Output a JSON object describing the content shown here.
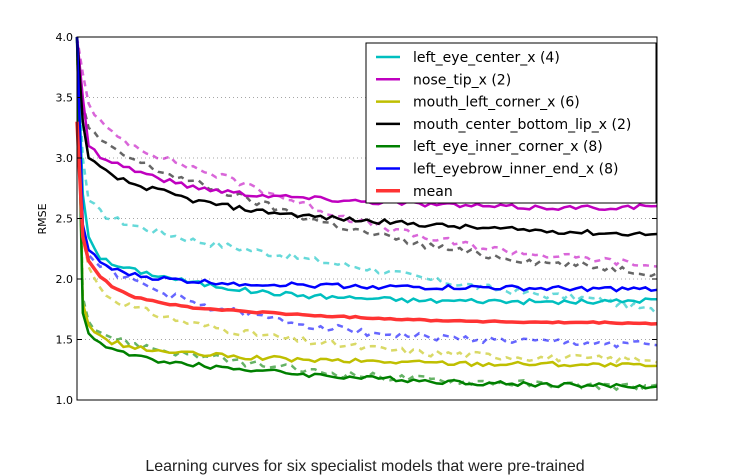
{
  "chart_data": {
    "type": "line",
    "title": "",
    "xlabel": "",
    "ylabel": "RMSE",
    "xlim": [
      0,
      100
    ],
    "ylim": [
      1.0,
      4.0
    ],
    "yticks": [
      "1.0",
      "1.5",
      "2.0",
      "2.5",
      "3.0",
      "3.5",
      "4.0"
    ],
    "ytick_values": [
      1.0,
      1.5,
      2.0,
      2.5,
      3.0,
      3.5,
      4.0
    ],
    "grid": "horizontal dotted",
    "legend_position": "top-right",
    "line_styles": {
      "solid": "train",
      "dashed": "validation"
    },
    "series": [
      {
        "name": "left_eye_center_x (4)",
        "color": "#00bfbf",
        "x": [
          0,
          1,
          2,
          4,
          6,
          10,
          15,
          20,
          30,
          40,
          50,
          60,
          70,
          80,
          90,
          100
        ],
        "solid": [
          4.0,
          2.7,
          2.35,
          2.18,
          2.12,
          2.07,
          2.02,
          1.97,
          1.9,
          1.86,
          1.84,
          1.82,
          1.82,
          1.81,
          1.81,
          1.83
        ],
        "dashed": [
          4.0,
          3.0,
          2.65,
          2.55,
          2.5,
          2.44,
          2.38,
          2.32,
          2.24,
          2.16,
          2.09,
          2.0,
          1.93,
          1.87,
          1.83,
          1.73
        ]
      },
      {
        "name": "nose_tip_x (2)",
        "color": "#bf00bf",
        "x": [
          0,
          1,
          2,
          4,
          6,
          10,
          15,
          20,
          30,
          40,
          50,
          60,
          70,
          80,
          90,
          100
        ],
        "solid": [
          4.0,
          3.5,
          3.1,
          3.02,
          2.97,
          2.9,
          2.82,
          2.76,
          2.7,
          2.67,
          2.64,
          2.62,
          2.6,
          2.59,
          2.59,
          2.6
        ],
        "dashed": [
          4.0,
          3.7,
          3.45,
          3.3,
          3.2,
          3.1,
          3.0,
          2.92,
          2.77,
          2.6,
          2.46,
          2.34,
          2.26,
          2.2,
          2.16,
          2.1
        ]
      },
      {
        "name": "mouth_left_corner_x (6)",
        "color": "#bfbf00",
        "x": [
          0,
          1,
          2,
          4,
          6,
          10,
          15,
          20,
          30,
          40,
          50,
          60,
          70,
          80,
          90,
          100
        ],
        "solid": [
          4.0,
          1.8,
          1.62,
          1.52,
          1.48,
          1.43,
          1.4,
          1.38,
          1.35,
          1.33,
          1.32,
          1.31,
          1.3,
          1.3,
          1.29,
          1.28
        ],
        "dashed": [
          4.0,
          2.35,
          2.1,
          1.92,
          1.84,
          1.76,
          1.69,
          1.63,
          1.55,
          1.48,
          1.43,
          1.39,
          1.37,
          1.35,
          1.34,
          1.34
        ]
      },
      {
        "name": "mouth_center_bottom_lip_x (2)",
        "color": "#000000",
        "x": [
          0,
          1,
          2,
          4,
          6,
          10,
          15,
          20,
          30,
          40,
          50,
          60,
          70,
          80,
          90,
          100
        ],
        "solid": [
          4.0,
          3.3,
          3.0,
          2.92,
          2.85,
          2.78,
          2.72,
          2.65,
          2.57,
          2.52,
          2.48,
          2.45,
          2.42,
          2.4,
          2.38,
          2.37
        ],
        "dashed": [
          4.0,
          3.45,
          3.25,
          3.15,
          3.07,
          2.98,
          2.88,
          2.8,
          2.65,
          2.5,
          2.38,
          2.28,
          2.2,
          2.14,
          2.1,
          2.05
        ]
      },
      {
        "name": "left_eye_inner_corner_x (8)",
        "color": "#008000",
        "x": [
          0,
          1,
          2,
          4,
          6,
          10,
          15,
          20,
          30,
          40,
          50,
          60,
          70,
          80,
          90,
          100
        ],
        "solid": [
          4.0,
          1.72,
          1.55,
          1.47,
          1.42,
          1.36,
          1.32,
          1.29,
          1.25,
          1.21,
          1.18,
          1.16,
          1.14,
          1.13,
          1.12,
          1.11
        ],
        "dashed": [
          4.0,
          1.85,
          1.65,
          1.57,
          1.52,
          1.46,
          1.41,
          1.37,
          1.3,
          1.24,
          1.2,
          1.17,
          1.15,
          1.13,
          1.12,
          1.1
        ]
      },
      {
        "name": "left_eyebrow_inner_end_x (8)",
        "color": "#0000ff",
        "x": [
          0,
          1,
          2,
          4,
          6,
          10,
          15,
          20,
          30,
          40,
          50,
          60,
          70,
          80,
          90,
          100
        ],
        "solid": [
          4.0,
          2.45,
          2.24,
          2.14,
          2.08,
          2.03,
          2.0,
          1.98,
          1.96,
          1.95,
          1.94,
          1.93,
          1.93,
          1.92,
          1.92,
          1.91
        ],
        "dashed": [
          4.0,
          2.4,
          2.2,
          2.12,
          2.06,
          1.98,
          1.88,
          1.8,
          1.7,
          1.62,
          1.56,
          1.52,
          1.5,
          1.48,
          1.47,
          1.46
        ]
      },
      {
        "name": "mean",
        "color": "#ff3333",
        "linewidth": 3.5,
        "x": [
          0,
          1,
          2,
          4,
          6,
          10,
          15,
          20,
          30,
          40,
          50,
          60,
          70,
          80,
          90,
          100
        ],
        "solid": [
          3.3,
          2.35,
          2.15,
          2.02,
          1.94,
          1.85,
          1.8,
          1.76,
          1.73,
          1.7,
          1.68,
          1.66,
          1.65,
          1.64,
          1.64,
          1.63
        ]
      }
    ]
  },
  "caption": "Learning curves for six specialist models that were pre-trained"
}
